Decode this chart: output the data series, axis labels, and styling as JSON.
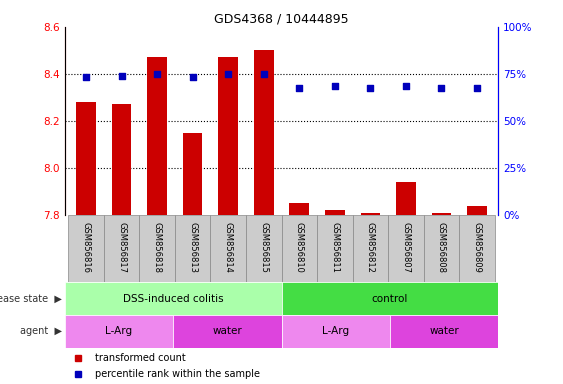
{
  "title": "GDS4368 / 10444895",
  "samples": [
    "GSM856816",
    "GSM856817",
    "GSM856818",
    "GSM856813",
    "GSM856814",
    "GSM856815",
    "GSM856810",
    "GSM856811",
    "GSM856812",
    "GSM856807",
    "GSM856808",
    "GSM856809"
  ],
  "red_values": [
    8.28,
    8.27,
    8.47,
    8.15,
    8.47,
    8.5,
    7.85,
    7.82,
    7.81,
    7.94,
    7.81,
    7.84
  ],
  "blue_values": [
    73.5,
    74,
    75,
    73.5,
    75,
    75,
    67.5,
    68.5,
    67.5,
    68.5,
    67.5,
    67.5
  ],
  "ylim_left": [
    7.8,
    8.6
  ],
  "ylim_right": [
    0,
    100
  ],
  "yticks_left": [
    7.8,
    8.0,
    8.2,
    8.4,
    8.6
  ],
  "yticks_right": [
    0,
    25,
    50,
    75,
    100
  ],
  "ytick_labels_right": [
    "0%",
    "25%",
    "50%",
    "75%",
    "100%"
  ],
  "disease_state_groups": [
    {
      "label": "DSS-induced colitis",
      "start": 0,
      "end": 6,
      "color": "#AAFFAA"
    },
    {
      "label": "control",
      "start": 6,
      "end": 12,
      "color": "#44DD44"
    }
  ],
  "agent_groups": [
    {
      "label": "L-Arg",
      "start": 0,
      "end": 3,
      "color": "#EE88EE"
    },
    {
      "label": "water",
      "start": 3,
      "end": 6,
      "color": "#DD44DD"
    },
    {
      "label": "L-Arg",
      "start": 6,
      "end": 9,
      "color": "#EE88EE"
    },
    {
      "label": "water",
      "start": 9,
      "end": 12,
      "color": "#DD44DD"
    }
  ],
  "bar_color": "#CC0000",
  "dot_color": "#0000BB",
  "bar_bottom": 7.8,
  "bar_width": 0.55,
  "dot_size": 25,
  "legend_items": [
    {
      "label": "transformed count",
      "color": "#CC0000"
    },
    {
      "label": "percentile rank within the sample",
      "color": "#0000BB"
    }
  ]
}
